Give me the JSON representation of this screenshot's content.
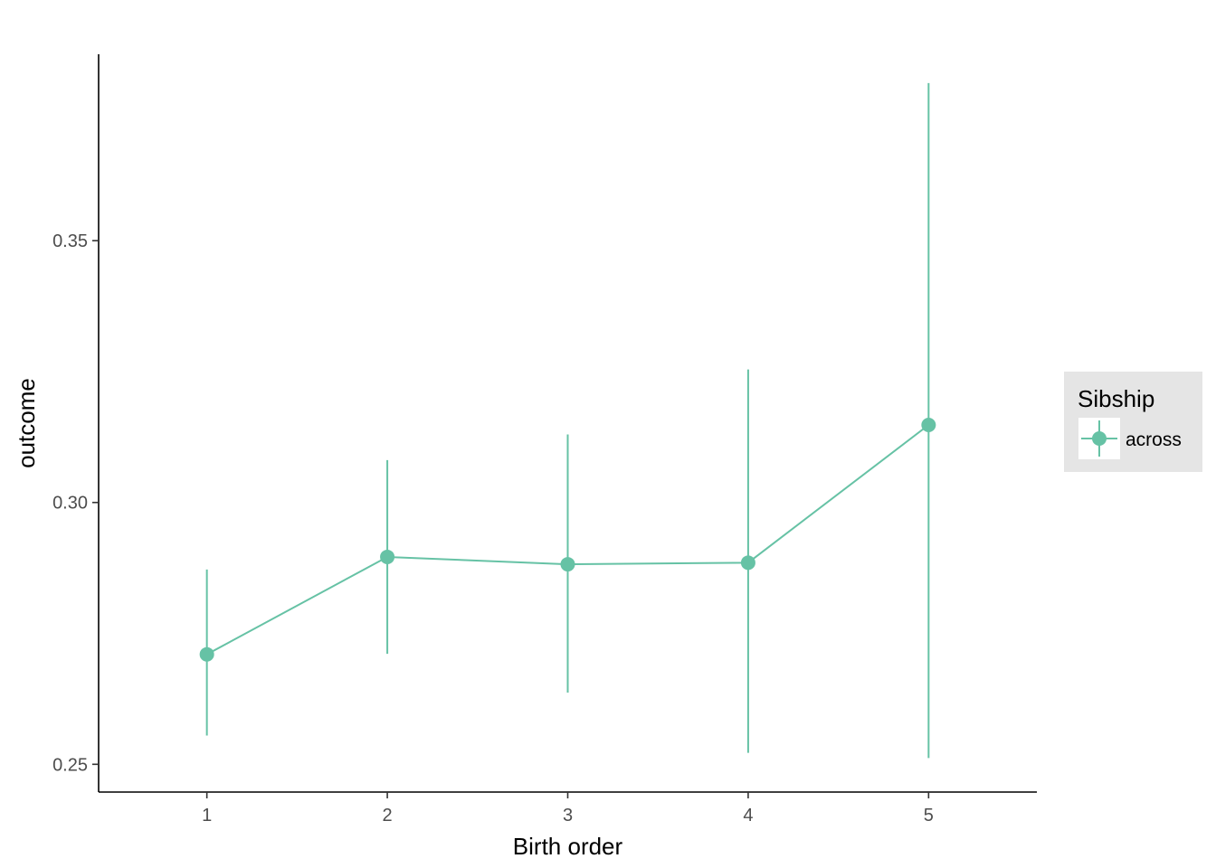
{
  "chart_data": {
    "type": "line",
    "xlabel": "Birth order",
    "ylabel": "outcome",
    "x": [
      1,
      2,
      3,
      4,
      5
    ],
    "xticks": [
      "1",
      "2",
      "3",
      "4",
      "5"
    ],
    "xlim": [
      0.4,
      5.6
    ],
    "ylim": [
      0.2447,
      0.3856
    ],
    "yticks": [
      0.25,
      0.3,
      0.35
    ],
    "ytick_labels": [
      "0.25",
      "0.30",
      "0.35"
    ],
    "grid": false,
    "legend": {
      "title": "Sibship",
      "placement": "right"
    },
    "series": [
      {
        "name": "across",
        "color": "#66c2a5",
        "values": [
          0.271,
          0.2896,
          0.2882,
          0.2885,
          0.3148
        ],
        "lower": [
          0.2555,
          0.2711,
          0.2637,
          0.2522,
          0.2512
        ],
        "upper": [
          0.2872,
          0.3081,
          0.313,
          0.3254,
          0.3801
        ]
      }
    ]
  }
}
